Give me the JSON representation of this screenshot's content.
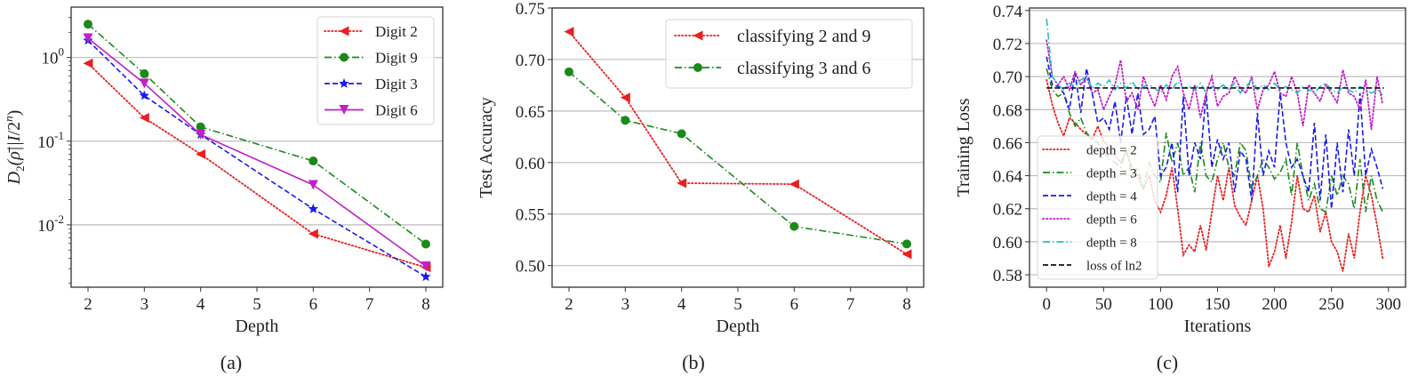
{
  "figure": {
    "captions": [
      "(a)",
      "(b)",
      "(c)"
    ]
  },
  "chart_data": [
    {
      "id": "a",
      "type": "line",
      "title": "",
      "xlabel": "Depth",
      "ylabel": "D_2(ρ̄ || I/2^n)",
      "yscale": "log",
      "ylim": [
        0.0018,
        4.0
      ],
      "xlim": [
        1.7,
        8.3
      ],
      "x_ticks": [
        2,
        3,
        4,
        5,
        6,
        7,
        8
      ],
      "y_ticks": [
        {
          "value": 1,
          "label": "10^0"
        },
        {
          "value": 0.1,
          "label": "10^-1"
        },
        {
          "value": 0.01,
          "label": "10^-2"
        }
      ],
      "grid": "y-major",
      "legend_position": "upper right",
      "x": [
        2,
        3,
        4,
        6,
        8
      ],
      "series": [
        {
          "name": "Digit 2",
          "color": "#e8201f",
          "linestyle": "dotted",
          "marker": "triangle-left",
          "values": [
            0.85,
            0.19,
            0.07,
            0.0078,
            0.0031
          ]
        },
        {
          "name": "Digit 9",
          "color": "#1a8a1a",
          "linestyle": "dashdot",
          "marker": "circle",
          "values": [
            2.5,
            0.64,
            0.148,
            0.058,
            0.0059
          ]
        },
        {
          "name": "Digit 3",
          "color": "#1a1aee",
          "linestyle": "dashed",
          "marker": "star",
          "values": [
            1.6,
            0.35,
            0.12,
            0.0155,
            0.0024
          ]
        },
        {
          "name": "Digit 6",
          "color": "#c020c8",
          "linestyle": "solid",
          "marker": "triangle-down",
          "values": [
            1.7,
            0.49,
            0.12,
            0.03,
            0.0032
          ]
        }
      ]
    },
    {
      "id": "b",
      "type": "line",
      "title": "",
      "xlabel": "Depth",
      "ylabel": "Test Accuracy",
      "yscale": "linear",
      "ylim": [
        0.479,
        0.75
      ],
      "xlim": [
        1.7,
        8.3
      ],
      "x_ticks": [
        2,
        3,
        4,
        5,
        6,
        7,
        8
      ],
      "y_ticks": [
        {
          "value": 0.5,
          "label": "0.50"
        },
        {
          "value": 0.55,
          "label": "0.55"
        },
        {
          "value": 0.6,
          "label": "0.60"
        },
        {
          "value": 0.65,
          "label": "0.65"
        },
        {
          "value": 0.7,
          "label": "0.70"
        },
        {
          "value": 0.75,
          "label": "0.75"
        }
      ],
      "grid": "y-major",
      "legend_position": "upper right",
      "x": [
        2,
        3,
        4,
        6,
        8
      ],
      "series": [
        {
          "name": "classifying 2 and 9",
          "color": "#e8201f",
          "linestyle": "dotted",
          "marker": "triangle-left",
          "values": [
            0.727,
            0.663,
            0.58,
            0.579,
            0.511
          ]
        },
        {
          "name": "classifying 3 and 6",
          "color": "#1a8a1a",
          "linestyle": "dashdot",
          "marker": "circle",
          "values": [
            0.688,
            0.641,
            0.628,
            0.538,
            0.521
          ]
        }
      ]
    },
    {
      "id": "c",
      "type": "line",
      "title": "",
      "xlabel": "Iterations",
      "ylabel": "Training Loss",
      "yscale": "linear",
      "ylim": [
        0.5725,
        0.7415
      ],
      "xlim": [
        -15,
        315
      ],
      "x_ticks": [
        0,
        50,
        100,
        150,
        200,
        250,
        300
      ],
      "y_ticks": [
        {
          "value": 0.58,
          "label": "0.58"
        },
        {
          "value": 0.6,
          "label": "0.60"
        },
        {
          "value": 0.62,
          "label": "0.62"
        },
        {
          "value": 0.64,
          "label": "0.64"
        },
        {
          "value": 0.66,
          "label": "0.66"
        },
        {
          "value": 0.68,
          "label": "0.68"
        },
        {
          "value": 0.7,
          "label": "0.70"
        },
        {
          "value": 0.72,
          "label": "0.72"
        },
        {
          "value": 0.74,
          "label": "0.74"
        }
      ],
      "grid": "y-major",
      "legend_position": "lower left",
      "x_step": 5,
      "x_start": 0,
      "series": [
        {
          "name": "depth = 2",
          "color": "#e8201f",
          "linestyle": "dotted",
          "values": [
            0.698,
            0.683,
            0.672,
            0.664,
            0.675,
            0.672,
            0.668,
            0.665,
            0.662,
            0.67,
            0.661,
            0.656,
            0.652,
            0.648,
            0.655,
            0.645,
            0.64,
            0.632,
            0.64,
            0.625,
            0.618,
            0.628,
            0.645,
            0.62,
            0.592,
            0.598,
            0.594,
            0.61,
            0.595,
            0.618,
            0.64,
            0.625,
            0.645,
            0.622,
            0.615,
            0.61,
            0.625,
            0.64,
            0.62,
            0.585,
            0.594,
            0.61,
            0.59,
            0.612,
            0.64,
            0.62,
            0.618,
            0.628,
            0.606,
            0.618,
            0.6,
            0.594,
            0.582,
            0.605,
            0.59,
            0.618,
            0.64,
            0.628,
            0.61,
            0.59
          ]
        },
        {
          "name": "depth = 3",
          "color": "#1a8a1a",
          "linestyle": "dashdot",
          "values": [
            0.705,
            0.692,
            0.688,
            0.69,
            0.678,
            0.67,
            0.675,
            0.666,
            0.662,
            0.66,
            0.655,
            0.65,
            0.648,
            0.645,
            0.655,
            0.64,
            0.645,
            0.632,
            0.648,
            0.64,
            0.636,
            0.666,
            0.648,
            0.66,
            0.64,
            0.645,
            0.63,
            0.66,
            0.64,
            0.636,
            0.65,
            0.66,
            0.645,
            0.64,
            0.66,
            0.655,
            0.632,
            0.64,
            0.65,
            0.645,
            0.638,
            0.642,
            0.65,
            0.628,
            0.66,
            0.64,
            0.625,
            0.635,
            0.62,
            0.618,
            0.64,
            0.628,
            0.64,
            0.635,
            0.62,
            0.65,
            0.618,
            0.64,
            0.625,
            0.618
          ]
        },
        {
          "name": "depth = 4",
          "color": "#1a1aee",
          "linestyle": "dashed",
          "values": [
            0.712,
            0.695,
            0.694,
            0.69,
            0.68,
            0.702,
            0.678,
            0.705,
            0.69,
            0.672,
            0.675,
            0.668,
            0.685,
            0.66,
            0.688,
            0.665,
            0.69,
            0.665,
            0.668,
            0.676,
            0.64,
            0.645,
            0.66,
            0.63,
            0.688,
            0.64,
            0.66,
            0.65,
            0.69,
            0.645,
            0.662,
            0.65,
            0.66,
            0.63,
            0.655,
            0.65,
            0.625,
            0.678,
            0.64,
            0.655,
            0.645,
            0.69,
            0.66,
            0.645,
            0.65,
            0.64,
            0.63,
            0.672,
            0.625,
            0.665,
            0.62,
            0.66,
            0.63,
            0.668,
            0.64,
            0.69,
            0.64,
            0.656,
            0.645,
            0.632
          ]
        },
        {
          "name": "depth = 6",
          "color": "#c020c8",
          "linestyle": "dotted",
          "values": [
            0.722,
            0.7,
            0.695,
            0.7,
            0.692,
            0.703,
            0.695,
            0.7,
            0.69,
            0.692,
            0.68,
            0.688,
            0.695,
            0.71,
            0.685,
            0.69,
            0.68,
            0.7,
            0.69,
            0.682,
            0.695,
            0.686,
            0.7,
            0.706,
            0.69,
            0.68,
            0.695,
            0.675,
            0.69,
            0.7,
            0.682,
            0.688,
            0.69,
            0.7,
            0.693,
            0.69,
            0.7,
            0.68,
            0.692,
            0.695,
            0.703,
            0.69,
            0.688,
            0.7,
            0.69,
            0.67,
            0.695,
            0.69,
            0.685,
            0.695,
            0.69,
            0.684,
            0.704,
            0.69,
            0.688,
            0.68,
            0.698,
            0.668,
            0.7,
            0.683
          ]
        },
        {
          "name": "depth = 8",
          "color": "#20c0c8",
          "linestyle": "dashdot",
          "values": [
            0.735,
            0.7,
            0.695,
            0.692,
            0.696,
            0.694,
            0.698,
            0.7,
            0.693,
            0.696,
            0.694,
            0.698,
            0.692,
            0.696,
            0.693,
            0.697,
            0.692,
            0.694,
            0.695,
            0.693,
            0.69,
            0.695,
            0.692,
            0.697,
            0.693,
            0.694,
            0.692,
            0.696,
            0.69,
            0.694,
            0.692,
            0.695,
            0.692,
            0.696,
            0.69,
            0.694,
            0.698,
            0.692,
            0.695,
            0.692,
            0.696,
            0.692,
            0.694,
            0.692,
            0.69,
            0.694,
            0.692,
            0.69,
            0.694,
            0.696,
            0.692,
            0.69,
            0.694,
            0.692,
            0.69,
            0.694,
            0.692,
            0.69,
            0.692,
            0.689
          ]
        },
        {
          "name": "loss of ln2",
          "color": "#111111",
          "linestyle": "dashed",
          "constant": 0.6931
        }
      ]
    }
  ]
}
